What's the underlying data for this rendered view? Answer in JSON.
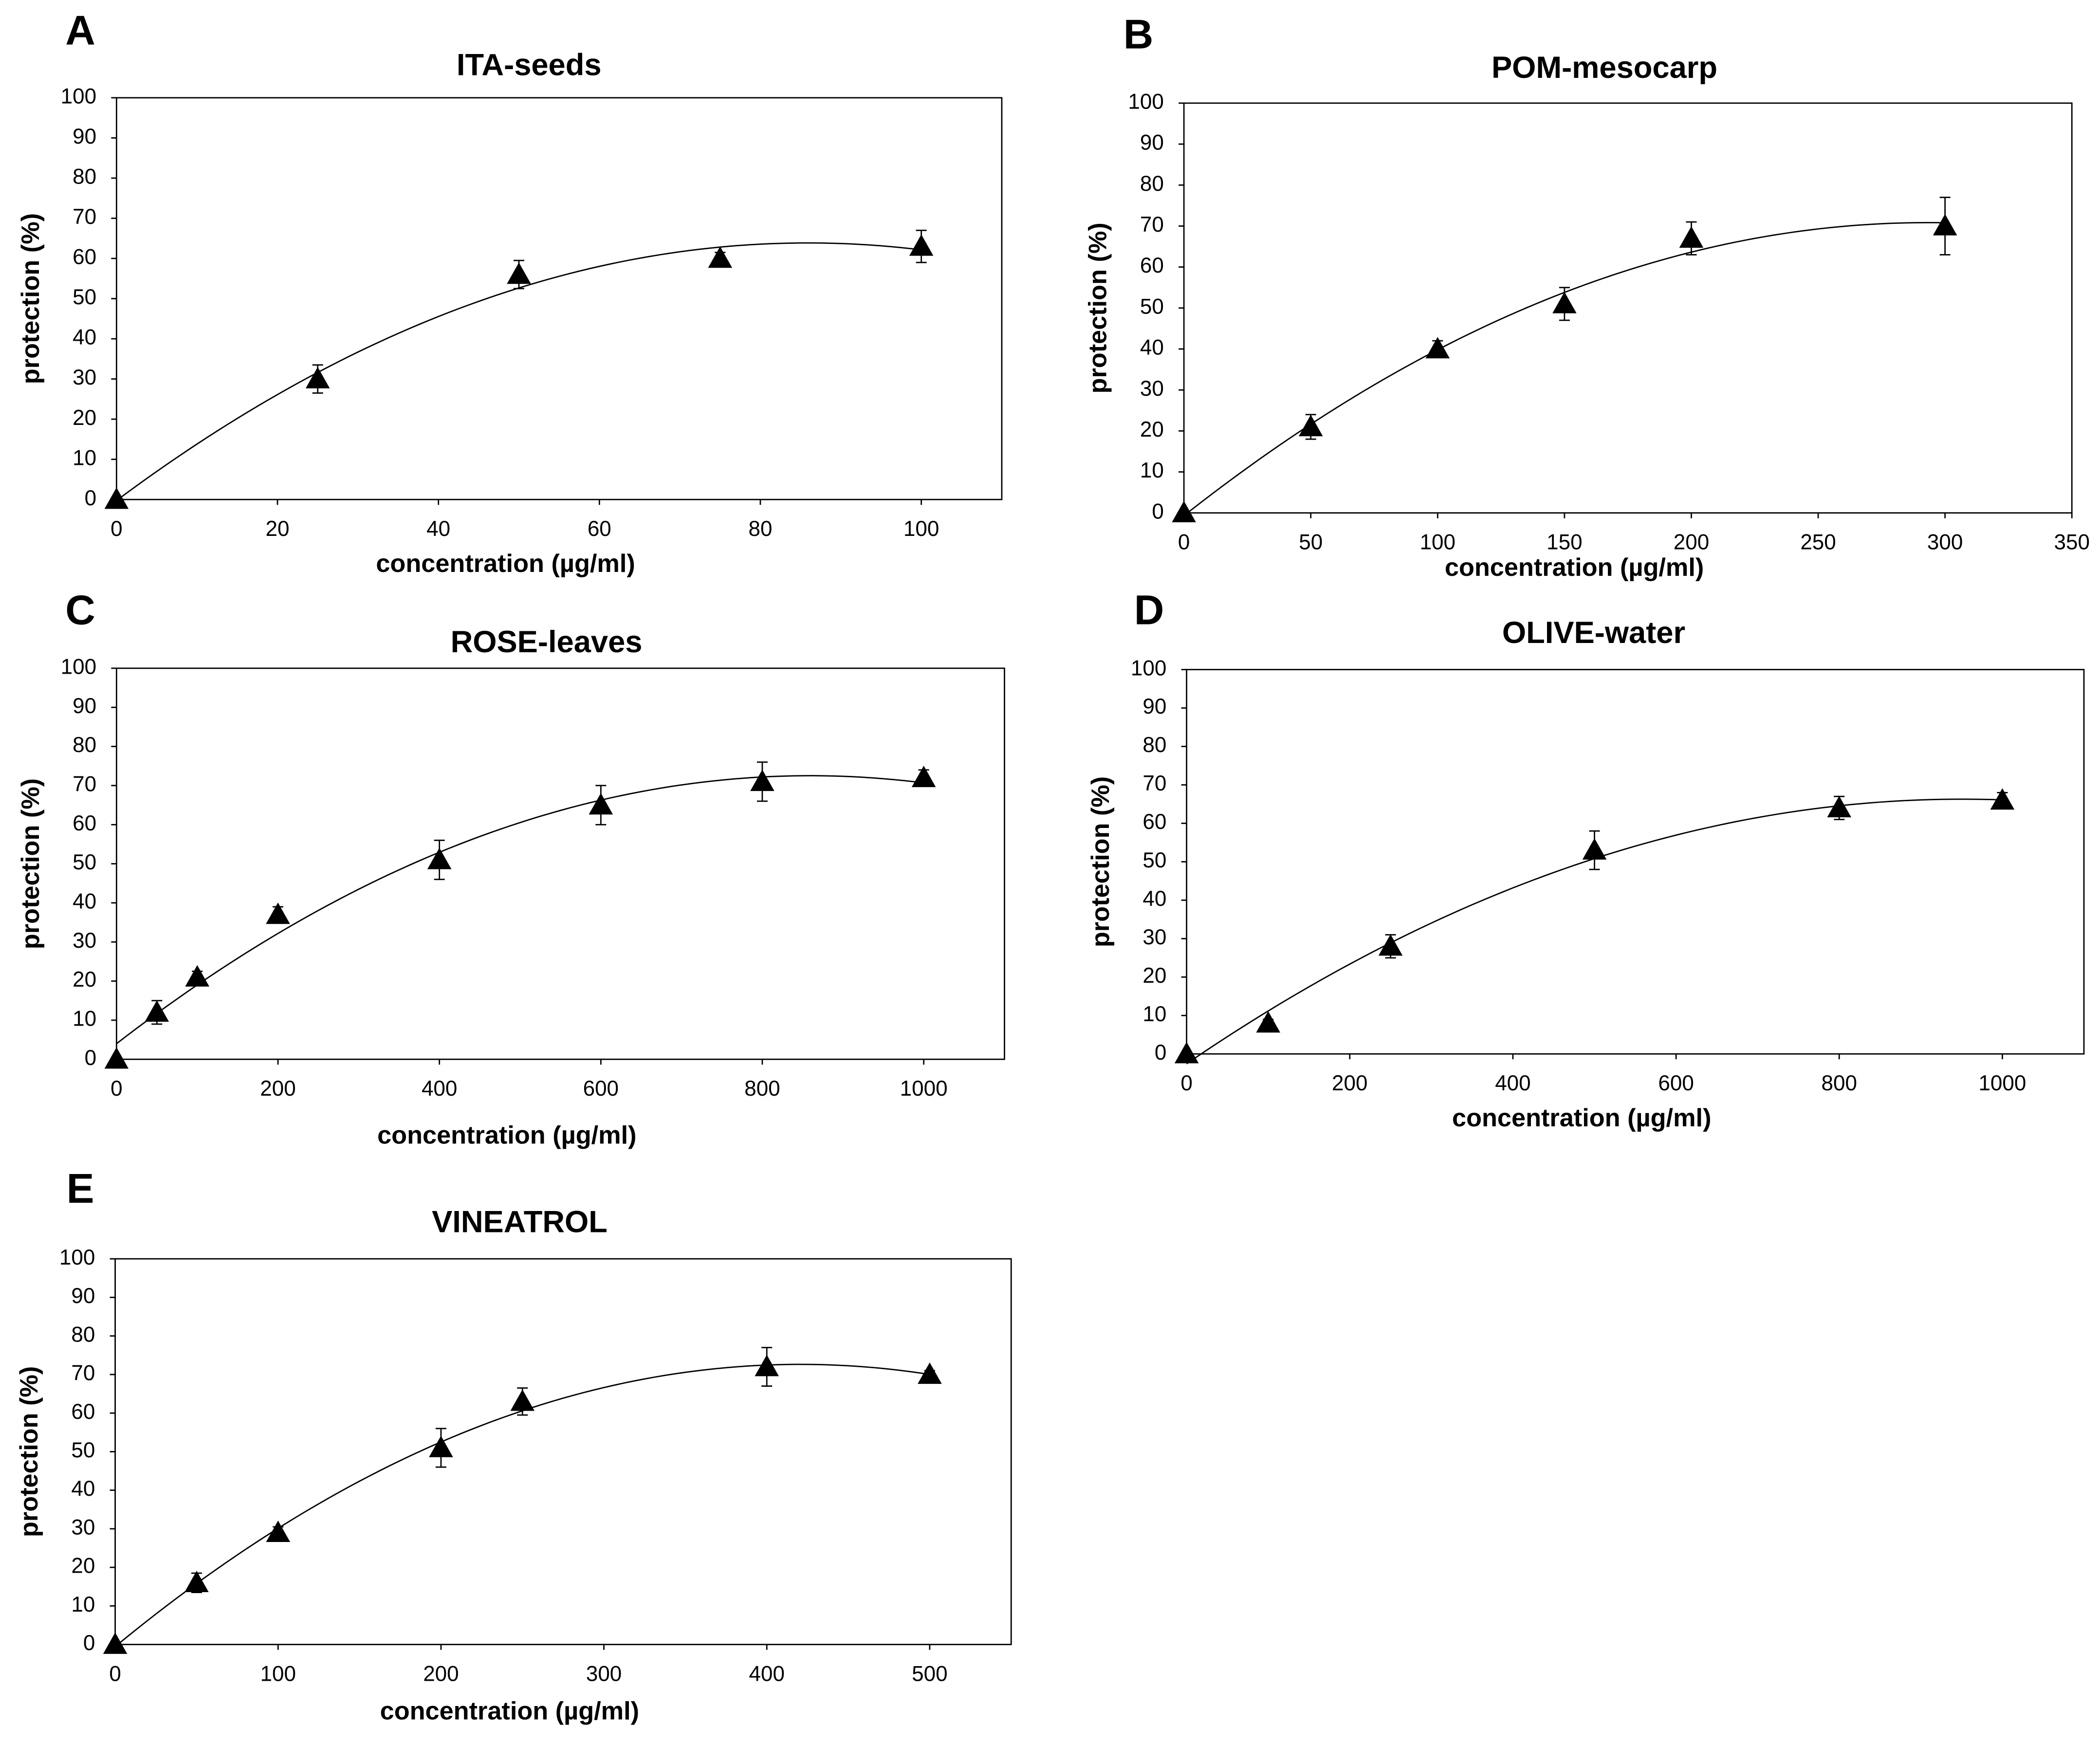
{
  "chart_data": [
    {
      "type": "scatter",
      "panel_label": "A",
      "title": "ITA-seeds",
      "x_label": "concentration (µg/ml)",
      "y_label": "protection (%)",
      "x": [
        0,
        25,
        50,
        75,
        100
      ],
      "values": [
        0,
        30,
        56,
        60,
        63
      ],
      "errors": [
        0,
        3.5,
        3.5,
        1.5,
        4
      ],
      "color": "#000000",
      "xlim": [
        0,
        110
      ],
      "xticks": [
        0,
        20,
        40,
        60,
        80,
        100
      ],
      "ylim": [
        0,
        100
      ],
      "yticks": [
        0,
        10,
        20,
        30,
        40,
        50,
        60,
        70,
        80,
        90,
        100
      ],
      "trendline": "polynomial-2"
    },
    {
      "type": "scatter",
      "panel_label": "B",
      "title": "POM-mesocarp",
      "x_label": "concentration (µg/ml)",
      "y_label": "protection (%)",
      "x": [
        0,
        50,
        100,
        150,
        200,
        300
      ],
      "values": [
        0,
        21,
        40,
        51,
        67,
        70
      ],
      "errors": [
        0,
        3,
        2,
        4,
        4,
        7
      ],
      "color": "#000000",
      "xlim": [
        0,
        350
      ],
      "xticks": [
        0,
        50,
        100,
        150,
        200,
        250,
        300,
        350
      ],
      "ylim": [
        0,
        100
      ],
      "yticks": [
        0,
        10,
        20,
        30,
        40,
        50,
        60,
        70,
        80,
        90,
        100
      ],
      "trendline": "polynomial-2"
    },
    {
      "type": "scatter",
      "panel_label": "C",
      "title": "ROSE-leaves",
      "x_label": "concentration (µg/ml)",
      "y_label": "protection (%)",
      "x": [
        0,
        50,
        100,
        200,
        400,
        600,
        800,
        1000
      ],
      "values": [
        0,
        12,
        21,
        37,
        51,
        65,
        71,
        72
      ],
      "errors": [
        0,
        3,
        1.5,
        2,
        5,
        5,
        5,
        2
      ],
      "color": "#000000",
      "xlim": [
        0,
        1100
      ],
      "xticks": [
        0,
        200,
        400,
        600,
        800,
        1000
      ],
      "ylim": [
        0,
        100
      ],
      "yticks": [
        0,
        10,
        20,
        30,
        40,
        50,
        60,
        70,
        80,
        90,
        100
      ],
      "trendline": "polynomial-2"
    },
    {
      "type": "scatter",
      "panel_label": "D",
      "title": "OLIVE-water",
      "x_label": "concentration (µg/ml)",
      "y_label": "protection (%)",
      "x": [
        0,
        100,
        250,
        500,
        800,
        1000
      ],
      "values": [
        0,
        8,
        28,
        53,
        64,
        66
      ],
      "errors": [
        0,
        1,
        3,
        5,
        3,
        2
      ],
      "color": "#000000",
      "xlim": [
        0,
        1100
      ],
      "xticks": [
        0,
        200,
        400,
        600,
        800,
        1000
      ],
      "ylim": [
        0,
        100
      ],
      "yticks": [
        0,
        10,
        20,
        30,
        40,
        50,
        60,
        70,
        80,
        90,
        100
      ],
      "trendline": "polynomial-2"
    },
    {
      "type": "scatter",
      "panel_label": "E",
      "title": "VINEATROL",
      "x_label": "concentration (µg/ml)",
      "y_label": "protection (%)",
      "x": [
        0,
        50,
        100,
        200,
        250,
        400,
        500
      ],
      "values": [
        0,
        16,
        29,
        51,
        63,
        72,
        70
      ],
      "errors": [
        0,
        2.5,
        1.5,
        5,
        3.5,
        5,
        1
      ],
      "color": "#000000",
      "xlim": [
        0,
        550
      ],
      "xticks": [
        0,
        100,
        200,
        300,
        400,
        500
      ],
      "ylim": [
        0,
        100
      ],
      "yticks": [
        0,
        10,
        20,
        30,
        40,
        50,
        60,
        70,
        80,
        90,
        100
      ],
      "trendline": "polynomial-2"
    }
  ]
}
